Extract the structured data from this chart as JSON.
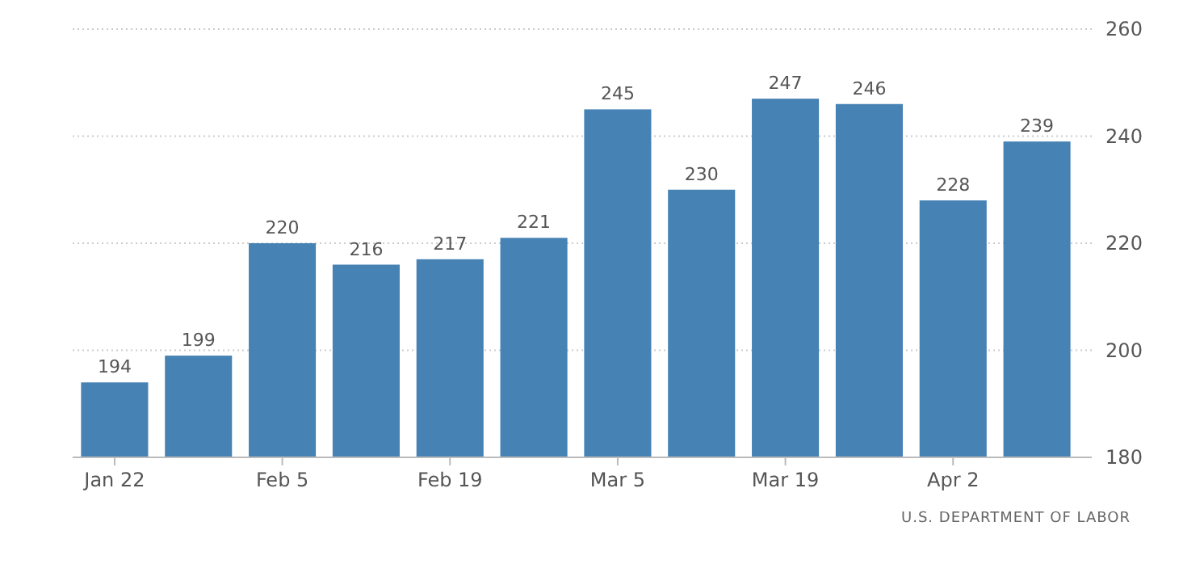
{
  "chart_data": {
    "type": "bar",
    "categories": [
      "Jan 22",
      null,
      "Feb 5",
      null,
      "Feb 19",
      null,
      "Mar 5",
      null,
      "Mar 19",
      null,
      "Apr 2",
      null
    ],
    "values": [
      194,
      199,
      220,
      216,
      217,
      221,
      245,
      230,
      247,
      246,
      228,
      239
    ],
    "color": "#4682b4",
    "ylim": [
      180,
      260
    ],
    "yticks": [
      180,
      200,
      220,
      240,
      260
    ],
    "grid": "y",
    "data_labels": true,
    "annotations": [
      "U.S. DEPARTMENT OF LABOR"
    ]
  }
}
